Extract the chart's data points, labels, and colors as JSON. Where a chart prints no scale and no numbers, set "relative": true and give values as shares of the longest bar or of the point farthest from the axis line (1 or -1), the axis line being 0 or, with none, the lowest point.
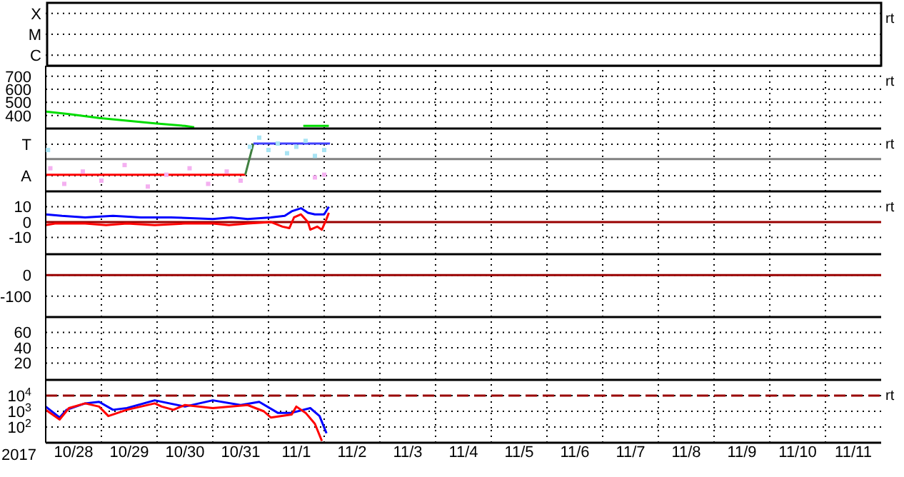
{
  "chart_data": [
    {
      "type": "other",
      "y_categories": [
        "X",
        "M",
        "C"
      ],
      "annotations": [
        "rt"
      ]
    },
    {
      "type": "line",
      "ylim": [
        300,
        780
      ],
      "yticks": [
        400,
        500,
        600,
        700
      ],
      "xlim": [
        "2017-10-28",
        "2017-11-12"
      ],
      "xticks": [
        {
          "value": "2017-10-29",
          "label": null
        },
        {
          "value": "2017-10-30",
          "label": null
        },
        {
          "value": "2017-10-31",
          "label": null
        },
        {
          "value": "2017-11-01",
          "label": null
        },
        {
          "value": "2017-11-02",
          "label": null
        },
        {
          "value": "2017-11-03",
          "label": null
        },
        {
          "value": "2017-11-04",
          "label": null
        },
        {
          "value": "2017-11-05",
          "label": null
        },
        {
          "value": "2017-11-06",
          "label": null
        },
        {
          "value": "2017-11-07",
          "label": null
        },
        {
          "value": "2017-11-08",
          "label": null
        },
        {
          "value": "2017-11-09",
          "label": null
        },
        {
          "value": "2017-11-10",
          "label": null
        },
        {
          "value": "2017-11-11",
          "label": null
        }
      ],
      "tick_labels": "y",
      "grid": true,
      "annotations": [
        "rt"
      ],
      "series": [
        {
          "color": "#00dd00",
          "x": [
            "2017-10-28T00:00",
            "2017-10-28T10:00",
            "2017-10-28T23:00",
            "2017-10-29T11:00",
            "2017-10-29T23:00",
            "2017-10-30T12:00",
            "2017-10-30T16:00",
            "2017-10-31T12:00",
            "2017-11-01T15:00",
            "2017-11-02T02:00"
          ],
          "values": [
            430,
            410,
            380,
            360,
            340,
            320,
            310,
            null,
            320,
            320
          ]
        }
      ]
    },
    {
      "type": "line",
      "relative": true,
      "y_categories": [
        "T",
        "A"
      ],
      "ref_lines": [
        {
          "axis": "y",
          "value": 0.6,
          "color": "#808080"
        }
      ],
      "xlim": [
        "2017-10-28",
        "2017-11-12"
      ],
      "xticks": [
        {
          "value": "2017-10-29",
          "label": null
        },
        {
          "value": "2017-10-30",
          "label": null
        },
        {
          "value": "2017-10-31",
          "label": null
        },
        {
          "value": "2017-11-01",
          "label": null
        },
        {
          "value": "2017-11-02",
          "label": null
        },
        {
          "value": "2017-11-03",
          "label": null
        },
        {
          "value": "2017-11-04",
          "label": null
        },
        {
          "value": "2017-11-05",
          "label": null
        },
        {
          "value": "2017-11-06",
          "label": null
        },
        {
          "value": "2017-11-07",
          "label": null
        },
        {
          "value": "2017-11-08",
          "label": null
        },
        {
          "value": "2017-11-09",
          "label": null
        },
        {
          "value": "2017-11-10",
          "label": null
        },
        {
          "value": "2017-11-11",
          "label": null
        }
      ],
      "tick_labels": "y",
      "grid": true,
      "annotations": [
        "rt"
      ],
      "series": [
        {
          "type": "scatter",
          "color": "#f4b0f0",
          "x": [
            "2017-10-28T02:00",
            "2017-10-28T08:00",
            "2017-10-28T16:00",
            "2017-10-29T00:00",
            "2017-10-29T10:00",
            "2017-10-29T20:00",
            "2017-10-30T04:00",
            "2017-10-30T14:00",
            "2017-10-30T22:00",
            "2017-10-31T06:00",
            "2017-10-31T12:00",
            "2017-11-01T20:00",
            "2017-11-02T00:00"
          ],
          "values": [
            0.43,
            0.14,
            0.37,
            0.2,
            0.49,
            0.09,
            0.31,
            0.43,
            0.14,
            0.37,
            0.2,
            0.26,
            0.31
          ]
        },
        {
          "type": "scatter",
          "color": "#a8e4f4",
          "x": [
            "2017-10-28T01:00",
            "2017-10-31T16:00",
            "2017-10-31T20:00",
            "2017-11-01T00:00",
            "2017-11-01T04:00",
            "2017-11-01T08:00",
            "2017-11-01T12:00",
            "2017-11-01T16:00",
            "2017-11-01T20:00",
            "2017-11-02T00:00"
          ],
          "values": [
            0.77,
            0.83,
            1.0,
            0.77,
            0.89,
            0.71,
            0.83,
            0.94,
            0.66,
            0.77
          ]
        },
        {
          "color": "#ff0000",
          "x": [
            "2017-10-28T00:00",
            "2017-10-31T14:00"
          ],
          "values": [
            0.31,
            0.31
          ]
        },
        {
          "color": "#408040",
          "x": [
            "2017-10-31T14:00",
            "2017-10-31T17:30"
          ],
          "values": [
            0.31,
            0.89
          ]
        },
        {
          "color": "#4040ff",
          "x": [
            "2017-10-31T17:30",
            "2017-11-02T02:30"
          ],
          "values": [
            0.89,
            0.89
          ]
        }
      ]
    },
    {
      "type": "line",
      "ylim": [
        -21,
        20
      ],
      "yticks": [
        -10,
        0,
        10
      ],
      "xlim": [
        "2017-10-28",
        "2017-11-12"
      ],
      "xticks": [
        {
          "value": "2017-10-29",
          "label": null
        },
        {
          "value": "2017-10-30",
          "label": null
        },
        {
          "value": "2017-10-31",
          "label": null
        },
        {
          "value": "2017-11-01",
          "label": null
        },
        {
          "value": "2017-11-02",
          "label": null
        },
        {
          "value": "2017-11-03",
          "label": null
        },
        {
          "value": "2017-11-04",
          "label": null
        },
        {
          "value": "2017-11-05",
          "label": null
        },
        {
          "value": "2017-11-06",
          "label": null
        },
        {
          "value": "2017-11-07",
          "label": null
        },
        {
          "value": "2017-11-08",
          "label": null
        },
        {
          "value": "2017-11-09",
          "label": null
        },
        {
          "value": "2017-11-10",
          "label": null
        },
        {
          "value": "2017-11-11",
          "label": null
        }
      ],
      "tick_labels": "y",
      "grid": true,
      "annotations": [
        "rt"
      ],
      "ref_lines": [
        {
          "axis": "y",
          "value": 0,
          "color": "#990000"
        }
      ],
      "series": [
        {
          "color": "#0000ff",
          "x": [
            "2017-10-28T00:00",
            "2017-10-28T07:00",
            "2017-10-28T17:00",
            "2017-10-29T05:00",
            "2017-10-29T17:00",
            "2017-10-30T06:00",
            "2017-10-31T00:00",
            "2017-10-31T08:00",
            "2017-10-31T15:00",
            "2017-11-01T01:00",
            "2017-11-01T07:00",
            "2017-11-01T10:00",
            "2017-11-01T14:00",
            "2017-11-01T17:00",
            "2017-11-01T20:00",
            "2017-11-02T00:00",
            "2017-11-02T02:00"
          ],
          "values": [
            5,
            4,
            3,
            4,
            3,
            3,
            2,
            3,
            2,
            3,
            4,
            7,
            9,
            6,
            5,
            5,
            10
          ]
        },
        {
          "color": "#ff0000",
          "x": [
            "2017-10-28T00:00",
            "2017-10-28T04:00",
            "2017-10-28T17:00",
            "2017-10-29T02:00",
            "2017-10-29T11:00",
            "2017-10-29T23:00",
            "2017-10-30T12:00",
            "2017-10-31T00:00",
            "2017-10-31T07:00",
            "2017-10-31T15:00",
            "2017-11-01T01:00",
            "2017-11-01T06:00",
            "2017-11-01T09:00",
            "2017-11-01T11:00",
            "2017-11-01T14:00",
            "2017-11-01T17:00",
            "2017-11-01T18:00",
            "2017-11-01T21:00",
            "2017-11-01T23:00",
            "2017-11-02T01:00",
            "2017-11-02T02:00"
          ],
          "values": [
            -2,
            -1,
            -1,
            -2,
            -1,
            -2,
            -1,
            -1,
            -2,
            -1,
            0,
            -3,
            -4,
            3,
            5,
            0,
            -5,
            -3,
            -5,
            2,
            6
          ]
        }
      ]
    },
    {
      "type": "line",
      "ylim": [
        -200,
        100
      ],
      "yticks": [
        -100,
        0
      ],
      "xlim": [
        "2017-10-28",
        "2017-11-12"
      ],
      "xticks": [
        {
          "value": "2017-10-29",
          "label": null
        },
        {
          "value": "2017-10-30",
          "label": null
        },
        {
          "value": "2017-10-31",
          "label": null
        },
        {
          "value": "2017-11-01",
          "label": null
        },
        {
          "value": "2017-11-02",
          "label": null
        },
        {
          "value": "2017-11-03",
          "label": null
        },
        {
          "value": "2017-11-04",
          "label": null
        },
        {
          "value": "2017-11-05",
          "label": null
        },
        {
          "value": "2017-11-06",
          "label": null
        },
        {
          "value": "2017-11-07",
          "label": null
        },
        {
          "value": "2017-11-08",
          "label": null
        },
        {
          "value": "2017-11-09",
          "label": null
        },
        {
          "value": "2017-11-10",
          "label": null
        },
        {
          "value": "2017-11-11",
          "label": null
        }
      ],
      "tick_labels": "y",
      "grid": true,
      "ref_lines": [
        {
          "axis": "y",
          "value": 0,
          "color": "#990000"
        }
      ]
    },
    {
      "type": "line",
      "ylim": [
        -2,
        80
      ],
      "yticks": [
        20,
        40,
        60
      ],
      "xlim": [
        "2017-10-28",
        "2017-11-12"
      ],
      "xticks": [
        {
          "value": "2017-10-29",
          "label": null
        },
        {
          "value": "2017-10-30",
          "label": null
        },
        {
          "value": "2017-10-31",
          "label": null
        },
        {
          "value": "2017-11-01",
          "label": null
        },
        {
          "value": "2017-11-02",
          "label": null
        },
        {
          "value": "2017-11-03",
          "label": null
        },
        {
          "value": "2017-11-04",
          "label": null
        },
        {
          "value": "2017-11-05",
          "label": null
        },
        {
          "value": "2017-11-06",
          "label": null
        },
        {
          "value": "2017-11-07",
          "label": null
        },
        {
          "value": "2017-11-08",
          "label": null
        },
        {
          "value": "2017-11-09",
          "label": null
        },
        {
          "value": "2017-11-10",
          "label": null
        },
        {
          "value": "2017-11-11",
          "label": null
        }
      ],
      "tick_labels": "y",
      "grid": true
    },
    {
      "type": "line",
      "log": "y",
      "xlabel": "2017",
      "ylim": [
        10,
        100000
      ],
      "yticks": [
        {
          "value": 100,
          "label": "10$^{2}$"
        },
        {
          "value": 1000,
          "label": "10$^{3}$"
        },
        {
          "value": 10000,
          "label": "10$^{4}$"
        }
      ],
      "xlim": [
        "2017-10-28",
        "2017-11-12"
      ],
      "xticks": [
        {
          "value": "2017-10-28T12:00",
          "label": "10/28"
        },
        {
          "value": "2017-10-29",
          "label": null
        },
        {
          "value": "2017-10-29T12:00",
          "label": "10/29"
        },
        {
          "value": "2017-10-30",
          "label": null
        },
        {
          "value": "2017-10-30T12:00",
          "label": "10/30"
        },
        {
          "value": "2017-10-31",
          "label": null
        },
        {
          "value": "2017-10-31T12:00",
          "label": "10/31"
        },
        {
          "value": "2017-11-01",
          "label": null
        },
        {
          "value": "2017-11-01T12:00",
          "label": "11/1"
        },
        {
          "value": "2017-11-02",
          "label": null
        },
        {
          "value": "2017-11-02T12:00",
          "label": "11/2"
        },
        {
          "value": "2017-11-03",
          "label": null
        },
        {
          "value": "2017-11-03T12:00",
          "label": "11/3"
        },
        {
          "value": "2017-11-04",
          "label": null
        },
        {
          "value": "2017-11-04T12:00",
          "label": "11/4"
        },
        {
          "value": "2017-11-05",
          "label": null
        },
        {
          "value": "2017-11-05T12:00",
          "label": "11/5"
        },
        {
          "value": "2017-11-06",
          "label": null
        },
        {
          "value": "2017-11-06T12:00",
          "label": "11/6"
        },
        {
          "value": "2017-11-07",
          "label": null
        },
        {
          "value": "2017-11-07T12:00",
          "label": "11/7"
        },
        {
          "value": "2017-11-08",
          "label": null
        },
        {
          "value": "2017-11-08T12:00",
          "label": "11/8"
        },
        {
          "value": "2017-11-09",
          "label": null
        },
        {
          "value": "2017-11-09T12:00",
          "label": "11/9"
        },
        {
          "value": "2017-11-10",
          "label": null
        },
        {
          "value": "2017-11-10T12:00",
          "label": "11/10"
        },
        {
          "value": "2017-11-11",
          "label": null
        },
        {
          "value": "2017-11-11T12:00",
          "label": "11/11"
        }
      ],
      "grid": true,
      "annotations": [
        "rt"
      ],
      "ref_lines": [
        {
          "axis": "y",
          "value": 10000,
          "color": "#990000",
          "line_style": "dashed"
        }
      ],
      "series": [
        {
          "color": "#0000ff",
          "x": [
            "2017-10-28T00:00",
            "2017-10-28T06:00",
            "2017-10-28T09:00",
            "2017-10-28T17:00",
            "2017-10-28T23:00",
            "2017-10-29T05:00",
            "2017-10-29T11:00",
            "2017-10-29T23:00",
            "2017-10-30T12:00",
            "2017-10-31T00:00",
            "2017-10-31T12:00",
            "2017-10-31T20:00",
            "2017-11-01T04:00",
            "2017-11-01T10:00",
            "2017-11-01T18:00",
            "2017-11-01T22:00",
            "2017-11-02T01:00"
          ],
          "values": [
            2000,
            400,
            1250,
            3200,
            4000,
            1250,
            1600,
            5000,
            2000,
            5000,
            2500,
            4000,
            800,
            800,
            1600,
            500,
            40
          ]
        },
        {
          "color": "#ff0000",
          "x": [
            "2017-10-28T00:00",
            "2017-10-28T06:00",
            "2017-10-28T10:00",
            "2017-10-28T17:00",
            "2017-10-28T23:00",
            "2017-10-29T03:00",
            "2017-10-29T11:00",
            "2017-10-29T23:00",
            "2017-10-30T02:00",
            "2017-10-30T07:00",
            "2017-10-30T12:00",
            "2017-10-31T00:00",
            "2017-10-31T15:00",
            "2017-10-31T22:00",
            "2017-11-01T01:00",
            "2017-11-01T10:00",
            "2017-11-01T12:00",
            "2017-11-01T16:00",
            "2017-11-01T20:00",
            "2017-11-01T23:00"
          ],
          "values": [
            1250,
            300,
            1600,
            3200,
            2000,
            500,
            1250,
            3200,
            2000,
            1250,
            2500,
            1600,
            2500,
            1000,
            400,
            630,
            2000,
            800,
            160,
            13
          ]
        }
      ]
    }
  ]
}
